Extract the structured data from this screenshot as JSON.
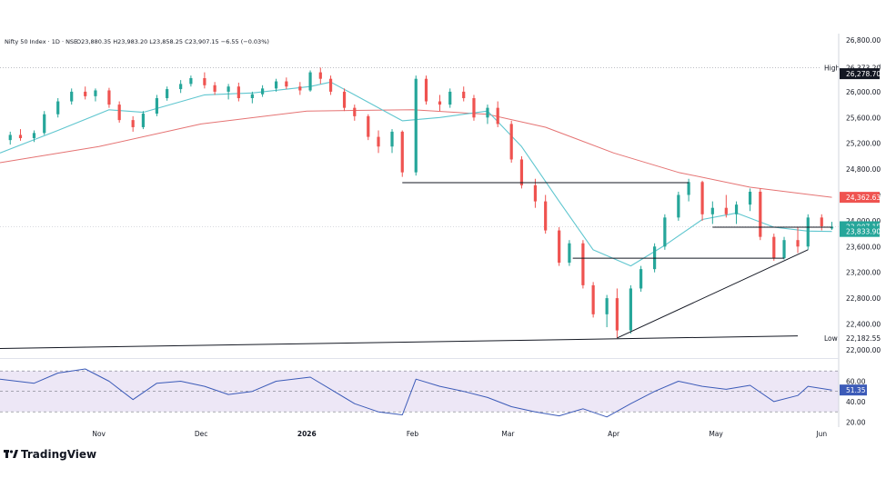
{
  "header": {
    "text": "Nifty 50 Index · 1D · NSE",
    "ohlc": "O23,880.35 H23,983.20 L23,858.25 C23,907.15 −6.55 (−0.03%)"
  },
  "brand": {
    "logo_text": "TradingView"
  },
  "colors": {
    "up": "#26a69a",
    "down": "#ef5350",
    "ema_fast": "#5fc6cf",
    "ema_slow": "#e57373",
    "rsi": "#3c5bb8",
    "rsi_band": "#ede7f6",
    "trendline": "#131722",
    "text": "#131722"
  },
  "chart_data": [
    {
      "type": "candlestick",
      "title": "",
      "ylim": [
        21900,
        26900
      ],
      "y_ticks": [
        "26,800.00",
        "26,400.00",
        "26,000.00",
        "25,600.00",
        "25,200.00",
        "24,800.00",
        "24,400.00",
        "24,000.00",
        "23,600.00",
        "23,200.00",
        "22,800.00",
        "22,400.00",
        "22,000.00"
      ],
      "y_tick_values": [
        26800,
        26400,
        26000,
        25600,
        25200,
        24800,
        24400,
        24000,
        23600,
        23200,
        22800,
        22400,
        22000
      ],
      "x_labels": [
        {
          "label": "Nov",
          "date": "2025-11-01"
        },
        {
          "label": "Dec",
          "date": "2025-12-01"
        },
        {
          "label": "2026",
          "date": "2026-01-01"
        },
        {
          "label": "Feb",
          "date": "2026-02-01"
        },
        {
          "label": "Mar",
          "date": "2026-03-01"
        },
        {
          "label": "Apr",
          "date": "2026-04-01"
        },
        {
          "label": "May",
          "date": "2026-05-01"
        },
        {
          "label": "Jun",
          "date": "2026-06-01"
        }
      ],
      "date_range": [
        "2025-10-03",
        "2026-06-06"
      ],
      "candles": [
        {
          "date": "2025-10-06",
          "o": 25250,
          "h": 25380,
          "l": 25180,
          "c": 25330
        },
        {
          "date": "2025-10-09",
          "o": 25330,
          "h": 25420,
          "l": 25240,
          "c": 25280
        },
        {
          "date": "2025-10-13",
          "o": 25280,
          "h": 25400,
          "l": 25220,
          "c": 25360
        },
        {
          "date": "2025-10-16",
          "o": 25360,
          "h": 25700,
          "l": 25330,
          "c": 25650
        },
        {
          "date": "2025-10-20",
          "o": 25650,
          "h": 25900,
          "l": 25600,
          "c": 25850
        },
        {
          "date": "2025-10-24",
          "o": 25850,
          "h": 26050,
          "l": 25800,
          "c": 26000
        },
        {
          "date": "2025-10-28",
          "o": 26000,
          "h": 26080,
          "l": 25880,
          "c": 25930
        },
        {
          "date": "2025-10-31",
          "o": 25930,
          "h": 26050,
          "l": 25850,
          "c": 26020
        },
        {
          "date": "2025-11-04",
          "o": 26020,
          "h": 26060,
          "l": 25750,
          "c": 25800
        },
        {
          "date": "2025-11-07",
          "o": 25800,
          "h": 25850,
          "l": 25520,
          "c": 25560
        },
        {
          "date": "2025-11-11",
          "o": 25560,
          "h": 25620,
          "l": 25380,
          "c": 25450
        },
        {
          "date": "2025-11-14",
          "o": 25450,
          "h": 25700,
          "l": 25420,
          "c": 25660
        },
        {
          "date": "2025-11-18",
          "o": 25660,
          "h": 25950,
          "l": 25620,
          "c": 25900
        },
        {
          "date": "2025-11-21",
          "o": 25900,
          "h": 26080,
          "l": 25860,
          "c": 26040
        },
        {
          "date": "2025-11-25",
          "o": 26040,
          "h": 26180,
          "l": 25980,
          "c": 26120
        },
        {
          "date": "2025-11-28",
          "o": 26120,
          "h": 26250,
          "l": 26080,
          "c": 26210
        },
        {
          "date": "2025-12-02",
          "o": 26210,
          "h": 26300,
          "l": 26050,
          "c": 26100
        },
        {
          "date": "2025-12-05",
          "o": 26100,
          "h": 26150,
          "l": 25950,
          "c": 26000
        },
        {
          "date": "2025-12-09",
          "o": 26000,
          "h": 26120,
          "l": 25880,
          "c": 26080
        },
        {
          "date": "2025-12-12",
          "o": 26080,
          "h": 26140,
          "l": 25850,
          "c": 25900
        },
        {
          "date": "2025-12-16",
          "o": 25900,
          "h": 26000,
          "l": 25820,
          "c": 25960
        },
        {
          "date": "2025-12-19",
          "o": 25960,
          "h": 26100,
          "l": 25920,
          "c": 26050
        },
        {
          "date": "2025-12-23",
          "o": 26050,
          "h": 26200,
          "l": 26000,
          "c": 26160
        },
        {
          "date": "2025-12-26",
          "o": 26160,
          "h": 26220,
          "l": 26040,
          "c": 26080
        },
        {
          "date": "2025-12-30",
          "o": 26080,
          "h": 26150,
          "l": 25950,
          "c": 26020
        },
        {
          "date": "2026-01-02",
          "o": 26020,
          "h": 26330,
          "l": 26000,
          "c": 26300
        },
        {
          "date": "2026-01-05",
          "o": 26300,
          "h": 26373,
          "l": 26120,
          "c": 26200
        },
        {
          "date": "2026-01-08",
          "o": 26200,
          "h": 26250,
          "l": 25950,
          "c": 26000
        },
        {
          "date": "2026-01-12",
          "o": 26000,
          "h": 26050,
          "l": 25700,
          "c": 25750
        },
        {
          "date": "2026-01-15",
          "o": 25750,
          "h": 25800,
          "l": 25550,
          "c": 25620
        },
        {
          "date": "2026-01-19",
          "o": 25620,
          "h": 25650,
          "l": 25250,
          "c": 25300
        },
        {
          "date": "2026-01-22",
          "o": 25300,
          "h": 25400,
          "l": 25050,
          "c": 25150
        },
        {
          "date": "2026-01-26",
          "o": 25150,
          "h": 25420,
          "l": 25050,
          "c": 25380
        },
        {
          "date": "2026-01-29",
          "o": 25380,
          "h": 25400,
          "l": 24680,
          "c": 24750
        },
        {
          "date": "2026-02-02",
          "o": 24750,
          "h": 26250,
          "l": 24700,
          "c": 26200
        },
        {
          "date": "2026-02-05",
          "o": 26200,
          "h": 26250,
          "l": 25800,
          "c": 25850
        },
        {
          "date": "2026-02-09",
          "o": 25850,
          "h": 25950,
          "l": 25700,
          "c": 25800
        },
        {
          "date": "2026-02-12",
          "o": 25800,
          "h": 26050,
          "l": 25750,
          "c": 26000
        },
        {
          "date": "2026-02-16",
          "o": 26000,
          "h": 26080,
          "l": 25850,
          "c": 25900
        },
        {
          "date": "2026-02-19",
          "o": 25900,
          "h": 25950,
          "l": 25550,
          "c": 25600
        },
        {
          "date": "2026-02-23",
          "o": 25600,
          "h": 25800,
          "l": 25500,
          "c": 25750
        },
        {
          "date": "2026-02-26",
          "o": 25750,
          "h": 25850,
          "l": 25450,
          "c": 25500
        },
        {
          "date": "2026-03-02",
          "o": 25500,
          "h": 25550,
          "l": 24900,
          "c": 24950
        },
        {
          "date": "2026-03-05",
          "o": 24950,
          "h": 25000,
          "l": 24500,
          "c": 24550
        },
        {
          "date": "2026-03-09",
          "o": 24550,
          "h": 24650,
          "l": 24200,
          "c": 24300
        },
        {
          "date": "2026-03-12",
          "o": 24300,
          "h": 24400,
          "l": 23800,
          "c": 23850
        },
        {
          "date": "2026-03-16",
          "o": 23850,
          "h": 23900,
          "l": 23300,
          "c": 23350
        },
        {
          "date": "2026-03-19",
          "o": 23350,
          "h": 23700,
          "l": 23300,
          "c": 23650
        },
        {
          "date": "2026-03-23",
          "o": 23650,
          "h": 23700,
          "l": 22950,
          "c": 23000
        },
        {
          "date": "2026-03-26",
          "o": 23000,
          "h": 23050,
          "l": 22500,
          "c": 22550
        },
        {
          "date": "2026-03-30",
          "o": 22550,
          "h": 22850,
          "l": 22350,
          "c": 22800
        },
        {
          "date": "2026-04-02",
          "o": 22800,
          "h": 22950,
          "l": 22183,
          "c": 22300
        },
        {
          "date": "2026-04-06",
          "o": 22300,
          "h": 23000,
          "l": 22250,
          "c": 22950
        },
        {
          "date": "2026-04-09",
          "o": 22950,
          "h": 23300,
          "l": 22900,
          "c": 23250
        },
        {
          "date": "2026-04-13",
          "o": 23250,
          "h": 23650,
          "l": 23200,
          "c": 23600
        },
        {
          "date": "2026-04-16",
          "o": 23600,
          "h": 24100,
          "l": 23550,
          "c": 24050
        },
        {
          "date": "2026-04-20",
          "o": 24050,
          "h": 24450,
          "l": 24000,
          "c": 24400
        },
        {
          "date": "2026-04-23",
          "o": 24400,
          "h": 24650,
          "l": 24300,
          "c": 24600
        },
        {
          "date": "2026-04-27",
          "o": 24600,
          "h": 24620,
          "l": 24000,
          "c": 24100
        },
        {
          "date": "2026-04-30",
          "o": 24100,
          "h": 24300,
          "l": 23950,
          "c": 24200
        },
        {
          "date": "2026-05-04",
          "o": 24200,
          "h": 24400,
          "l": 24050,
          "c": 24100
        },
        {
          "date": "2026-05-07",
          "o": 24100,
          "h": 24300,
          "l": 23950,
          "c": 24250
        },
        {
          "date": "2026-05-11",
          "o": 24250,
          "h": 24500,
          "l": 24150,
          "c": 24450
        },
        {
          "date": "2026-05-14",
          "o": 24450,
          "h": 24500,
          "l": 23700,
          "c": 23750
        },
        {
          "date": "2026-05-18",
          "o": 23750,
          "h": 23800,
          "l": 23380,
          "c": 23420
        },
        {
          "date": "2026-05-21",
          "o": 23420,
          "h": 23750,
          "l": 23400,
          "c": 23700
        },
        {
          "date": "2026-05-25",
          "o": 23700,
          "h": 23900,
          "l": 23500,
          "c": 23600
        },
        {
          "date": "2026-05-28",
          "o": 23600,
          "h": 24100,
          "l": 23550,
          "c": 24050
        },
        {
          "date": "2026-06-01",
          "o": 24050,
          "h": 24100,
          "l": 23850,
          "c": 23914
        },
        {
          "date": "2026-06-04",
          "o": 23880,
          "h": 23983,
          "l": 23858,
          "c": 23907
        }
      ],
      "ema_fast": [
        {
          "date": "2025-10-03",
          "v": 25050
        },
        {
          "date": "2025-10-20",
          "v": 25400
        },
        {
          "date": "2025-11-04",
          "v": 25720
        },
        {
          "date": "2025-11-14",
          "v": 25680
        },
        {
          "date": "2025-12-02",
          "v": 25950
        },
        {
          "date": "2025-12-16",
          "v": 25980
        },
        {
          "date": "2026-01-02",
          "v": 26080
        },
        {
          "date": "2026-01-08",
          "v": 26150
        },
        {
          "date": "2026-01-15",
          "v": 25950
        },
        {
          "date": "2026-01-29",
          "v": 25550
        },
        {
          "date": "2026-02-09",
          "v": 25600
        },
        {
          "date": "2026-02-23",
          "v": 25700
        },
        {
          "date": "2026-03-05",
          "v": 25150
        },
        {
          "date": "2026-03-16",
          "v": 24300
        },
        {
          "date": "2026-03-26",
          "v": 23550
        },
        {
          "date": "2026-04-06",
          "v": 23300
        },
        {
          "date": "2026-04-16",
          "v": 23620
        },
        {
          "date": "2026-04-27",
          "v": 24020
        },
        {
          "date": "2026-05-07",
          "v": 24120
        },
        {
          "date": "2026-05-18",
          "v": 23900
        },
        {
          "date": "2026-05-28",
          "v": 23840
        },
        {
          "date": "2026-06-04",
          "v": 23834
        }
      ],
      "ema_slow": [
        {
          "date": "2025-10-03",
          "v": 24900
        },
        {
          "date": "2025-11-01",
          "v": 25150
        },
        {
          "date": "2025-12-01",
          "v": 25500
        },
        {
          "date": "2026-01-01",
          "v": 25700
        },
        {
          "date": "2026-02-01",
          "v": 25720
        },
        {
          "date": "2026-02-23",
          "v": 25650
        },
        {
          "date": "2026-03-12",
          "v": 25450
        },
        {
          "date": "2026-04-01",
          "v": 25050
        },
        {
          "date": "2026-04-20",
          "v": 24750
        },
        {
          "date": "2026-05-11",
          "v": 24520
        },
        {
          "date": "2026-06-04",
          "v": 24363
        }
      ],
      "trendlines": [
        {
          "from": {
            "date": "2025-10-03",
            "v": 22020
          },
          "to": {
            "date": "2026-05-25",
            "v": 22215
          }
        },
        {
          "from": {
            "date": "2026-04-02",
            "v": 22183
          },
          "to": {
            "date": "2026-05-28",
            "v": 23550
          }
        },
        {
          "from": {
            "date": "2026-01-29",
            "v": 24590
          },
          "to": {
            "date": "2026-04-23",
            "v": 24590
          }
        },
        {
          "from": {
            "date": "2026-03-20",
            "v": 23420
          },
          "to": {
            "date": "2026-05-21",
            "v": 23420
          }
        },
        {
          "from": {
            "date": "2026-04-30",
            "v": 23900
          },
          "to": {
            "date": "2026-06-04",
            "v": 23900
          }
        }
      ],
      "markers": [
        {
          "label": "High",
          "value": "26,373.20",
          "v": 26373,
          "style": "plain"
        },
        {
          "label": "",
          "value": "26,278.70",
          "v": 26279,
          "style": "dark"
        },
        {
          "label": "",
          "value": "24,362.63",
          "v": 24363,
          "style": "red"
        },
        {
          "label": "",
          "value": "23,907.15",
          "v": 23907,
          "style": "teal"
        },
        {
          "label": "",
          "value": "23,833.90",
          "v": 23834,
          "style": "teal"
        },
        {
          "label": "Low",
          "value": "22,182.55",
          "v": 22183,
          "style": "plain"
        }
      ]
    },
    {
      "type": "line",
      "name": "RSI",
      "ylim": [
        15,
        80
      ],
      "band": [
        30,
        70
      ],
      "midline": 50,
      "y_ticks": [
        "60.00",
        "40.00",
        "20.00"
      ],
      "y_tick_values": [
        60,
        40,
        20
      ],
      "current": "51.35",
      "current_value": 51.35,
      "points": [
        {
          "date": "2025-10-03",
          "v": 62
        },
        {
          "date": "2025-10-13",
          "v": 58
        },
        {
          "date": "2025-10-20",
          "v": 68
        },
        {
          "date": "2025-10-28",
          "v": 72
        },
        {
          "date": "2025-11-04",
          "v": 60
        },
        {
          "date": "2025-11-11",
          "v": 42
        },
        {
          "date": "2025-11-18",
          "v": 58
        },
        {
          "date": "2025-11-25",
          "v": 60
        },
        {
          "date": "2025-12-02",
          "v": 55
        },
        {
          "date": "2025-12-09",
          "v": 47
        },
        {
          "date": "2025-12-16",
          "v": 50
        },
        {
          "date": "2025-12-23",
          "v": 60
        },
        {
          "date": "2026-01-02",
          "v": 64
        },
        {
          "date": "2026-01-08",
          "v": 52
        },
        {
          "date": "2026-01-15",
          "v": 38
        },
        {
          "date": "2026-01-22",
          "v": 30
        },
        {
          "date": "2026-01-29",
          "v": 27
        },
        {
          "date": "2026-02-02",
          "v": 62
        },
        {
          "date": "2026-02-09",
          "v": 55
        },
        {
          "date": "2026-02-16",
          "v": 50
        },
        {
          "date": "2026-02-23",
          "v": 44
        },
        {
          "date": "2026-03-02",
          "v": 35
        },
        {
          "date": "2026-03-09",
          "v": 30
        },
        {
          "date": "2026-03-16",
          "v": 26
        },
        {
          "date": "2026-03-23",
          "v": 33
        },
        {
          "date": "2026-03-30",
          "v": 25
        },
        {
          "date": "2026-04-06",
          "v": 38
        },
        {
          "date": "2026-04-13",
          "v": 50
        },
        {
          "date": "2026-04-20",
          "v": 60
        },
        {
          "date": "2026-04-27",
          "v": 55
        },
        {
          "date": "2026-05-04",
          "v": 52
        },
        {
          "date": "2026-05-11",
          "v": 56
        },
        {
          "date": "2026-05-18",
          "v": 40
        },
        {
          "date": "2026-05-25",
          "v": 46
        },
        {
          "date": "2026-05-28",
          "v": 55
        },
        {
          "date": "2026-06-04",
          "v": 51.35
        }
      ]
    }
  ]
}
